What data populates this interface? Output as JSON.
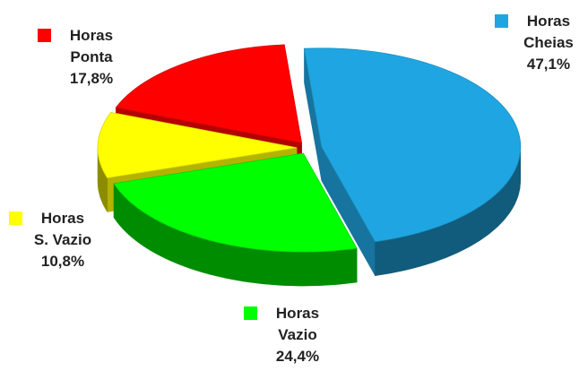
{
  "chart_data": {
    "type": "pie",
    "categories": [
      "Horas Cheias",
      "Horas Vazio",
      "Horas S. Vazio",
      "Horas Ponta"
    ],
    "values": [
      47.1,
      24.4,
      10.8,
      17.8
    ],
    "value_labels": [
      "47,1%",
      "24,4%",
      "10,8%",
      "17,8%"
    ],
    "colors": [
      "#1fa6e2",
      "#00ff00",
      "#ffff00",
      "#ff0000"
    ]
  }
}
